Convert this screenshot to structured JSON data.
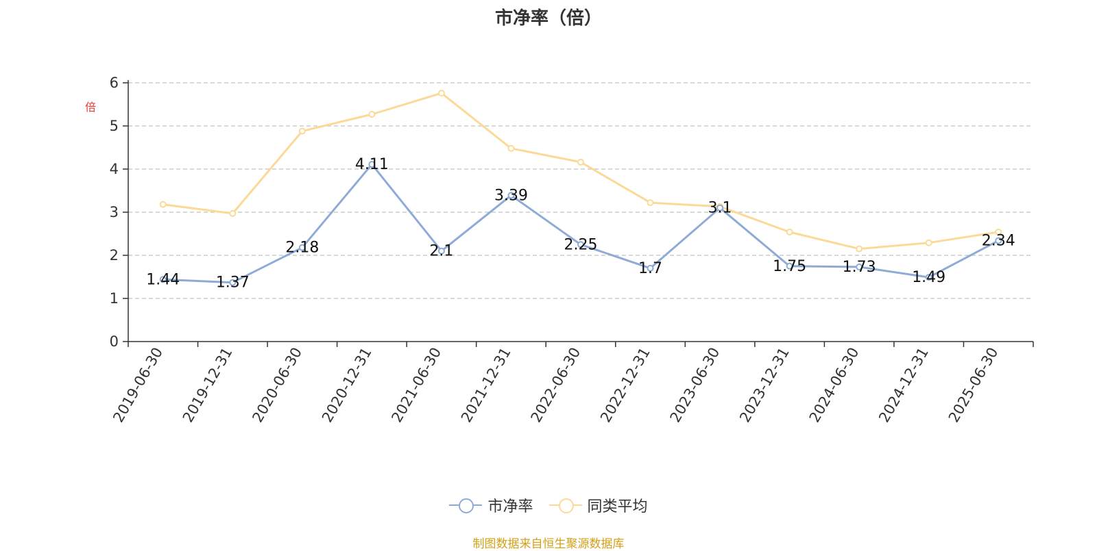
{
  "chart_data": {
    "type": "line",
    "title": "市净率（倍）",
    "ylabel": "倍",
    "ylim": [
      0,
      6
    ],
    "yticks": [
      "0",
      "1",
      "2",
      "3",
      "4",
      "5",
      "6"
    ],
    "categories": [
      "2019-06-30",
      "2019-12-31",
      "2020-06-30",
      "2020-12-31",
      "2021-06-30",
      "2021-12-31",
      "2022-06-30",
      "2022-12-31",
      "2023-06-30",
      "2023-12-31",
      "2024-06-30",
      "2024-12-31",
      "2025-06-30"
    ],
    "series": [
      {
        "name": "市净率",
        "color": "#8eabd6",
        "values": [
          1.44,
          1.37,
          2.18,
          4.11,
          2.1,
          3.39,
          2.25,
          1.7,
          3.1,
          1.75,
          1.73,
          1.49,
          2.34
        ],
        "labels": [
          "1.44",
          "1.37",
          "2.18",
          "4.11",
          "2.1",
          "3.39",
          "2.25",
          "1.7",
          "3.1",
          "1.75",
          "1.73",
          "1.49",
          "2.34"
        ]
      },
      {
        "name": "同类平均",
        "color": "#fcd997",
        "values": [
          3.18,
          2.97,
          4.88,
          5.27,
          5.76,
          4.48,
          4.16,
          3.22,
          3.13,
          2.54,
          2.15,
          2.29,
          2.54
        ]
      }
    ],
    "grid": true,
    "legend_position": "bottom-center"
  },
  "colors": {
    "ylabel": "#e8382f",
    "source": "#d4a017",
    "axis": "#333333",
    "grid": "#cccccc"
  },
  "legend": [
    {
      "label": "市净率",
      "color": "#8eabd6"
    },
    {
      "label": "同类平均",
      "color": "#fcd997"
    }
  ],
  "source_text": "制图数据来自恒生聚源数据库"
}
